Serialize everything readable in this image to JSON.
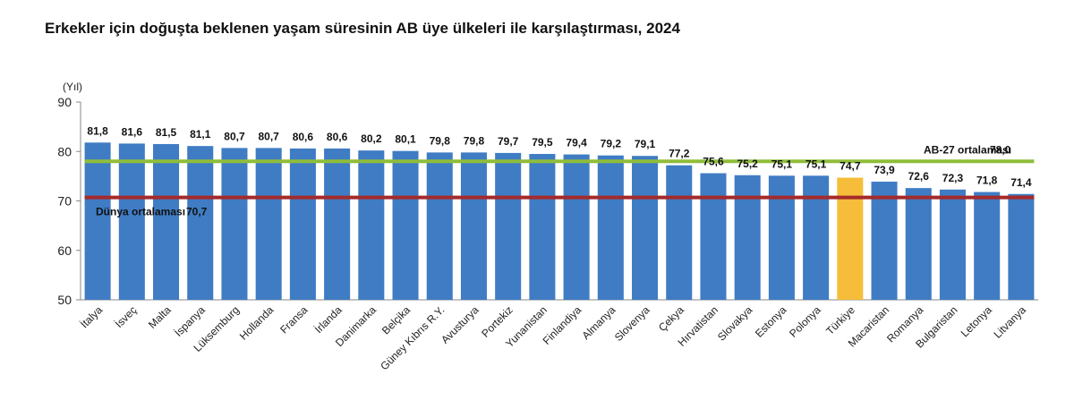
{
  "title": "Erkekler için doğuşta beklenen yaşam süresinin AB üye ülkeleri ile karşılaştırması, 2024",
  "chart_data": {
    "type": "bar",
    "ylabel": "(Yıl)",
    "ylim": [
      50,
      90
    ],
    "yticks": [
      "50",
      "60",
      "70",
      "80",
      "90"
    ],
    "categories": [
      "İtalya",
      "İsveç",
      "Malta",
      "İspanya",
      "Lüksemburg",
      "Hollanda",
      "Fransa",
      "İrlanda",
      "Danimarka",
      "Belçika",
      "Güney Kıbrıs R.Y.",
      "Avusturya",
      "Portekiz",
      "Yunanistan",
      "Finlandiya",
      "Almanya",
      "Slovenya",
      "Çekya",
      "Hırvatistan",
      "Slovakya",
      "Estonya",
      "Polonya",
      "Türkiye",
      "Macaristan",
      "Romanya",
      "Bulgaristan",
      "Letonya",
      "Litvanya"
    ],
    "values": [
      81.8,
      81.6,
      81.5,
      81.1,
      80.7,
      80.7,
      80.6,
      80.6,
      80.2,
      80.1,
      79.8,
      79.8,
      79.7,
      79.5,
      79.4,
      79.2,
      79.1,
      77.2,
      75.6,
      75.2,
      75.1,
      75.1,
      74.7,
      73.9,
      72.6,
      72.3,
      71.8,
      71.4
    ],
    "value_labels": [
      "81,8",
      "81,6",
      "81,5",
      "81,1",
      "80,7",
      "80,7",
      "80,6",
      "80,6",
      "80,2",
      "80,1",
      "79,8",
      "79,8",
      "79,7",
      "79,5",
      "79,4",
      "79,2",
      "79,1",
      "77,2",
      "75,6",
      "75,2",
      "75,1",
      "75,1",
      "74,7",
      "73,9",
      "72,6",
      "72,3",
      "71,8",
      "71,4"
    ],
    "highlight_index": 22,
    "reference_lines": [
      {
        "name": "AB-27 ortalaması",
        "value": 78.0,
        "value_label": "78,0",
        "color": "#8fbd3a"
      },
      {
        "name": "Dünya ortalaması",
        "value": 70.7,
        "value_label": "70,7",
        "color": "#a52a2a"
      }
    ],
    "colors": {
      "bar": "#3f7cc4",
      "highlight": "#f5bd3a",
      "axis": "#888888"
    }
  }
}
